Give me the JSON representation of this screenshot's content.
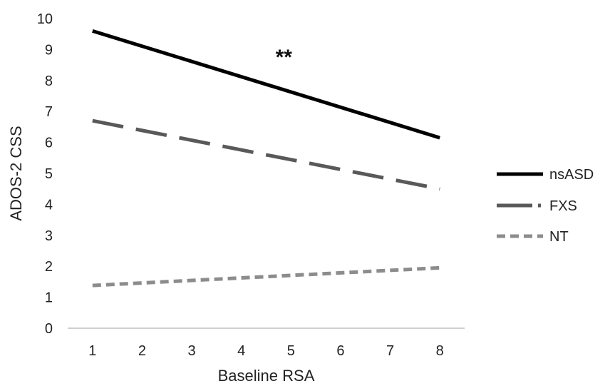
{
  "chart_data": {
    "type": "line",
    "xlabel": "Baseline RSA",
    "ylabel": "ADOS-2 CSS",
    "x": [
      1,
      2,
      3,
      4,
      5,
      6,
      7,
      8
    ],
    "ylim": [
      0,
      10
    ],
    "yticks": [
      0,
      1,
      2,
      3,
      4,
      5,
      6,
      7,
      8,
      9,
      10
    ],
    "series": [
      {
        "name": "nsASD",
        "start": [
          1,
          9.6
        ],
        "end": [
          8,
          6.15
        ],
        "color": "#000000",
        "style": "solid"
      },
      {
        "name": "FXS",
        "start": [
          1,
          6.7
        ],
        "end": [
          8,
          4.5
        ],
        "color": "#595959",
        "style": "long-dash"
      },
      {
        "name": "NT",
        "start": [
          1,
          1.38
        ],
        "end": [
          8,
          1.95
        ],
        "color": "#8c8c8c",
        "style": "short-dash"
      }
    ],
    "annotations": [
      {
        "text": "**",
        "x": 5,
        "y": 8.8
      }
    ],
    "legend_position": "right"
  }
}
